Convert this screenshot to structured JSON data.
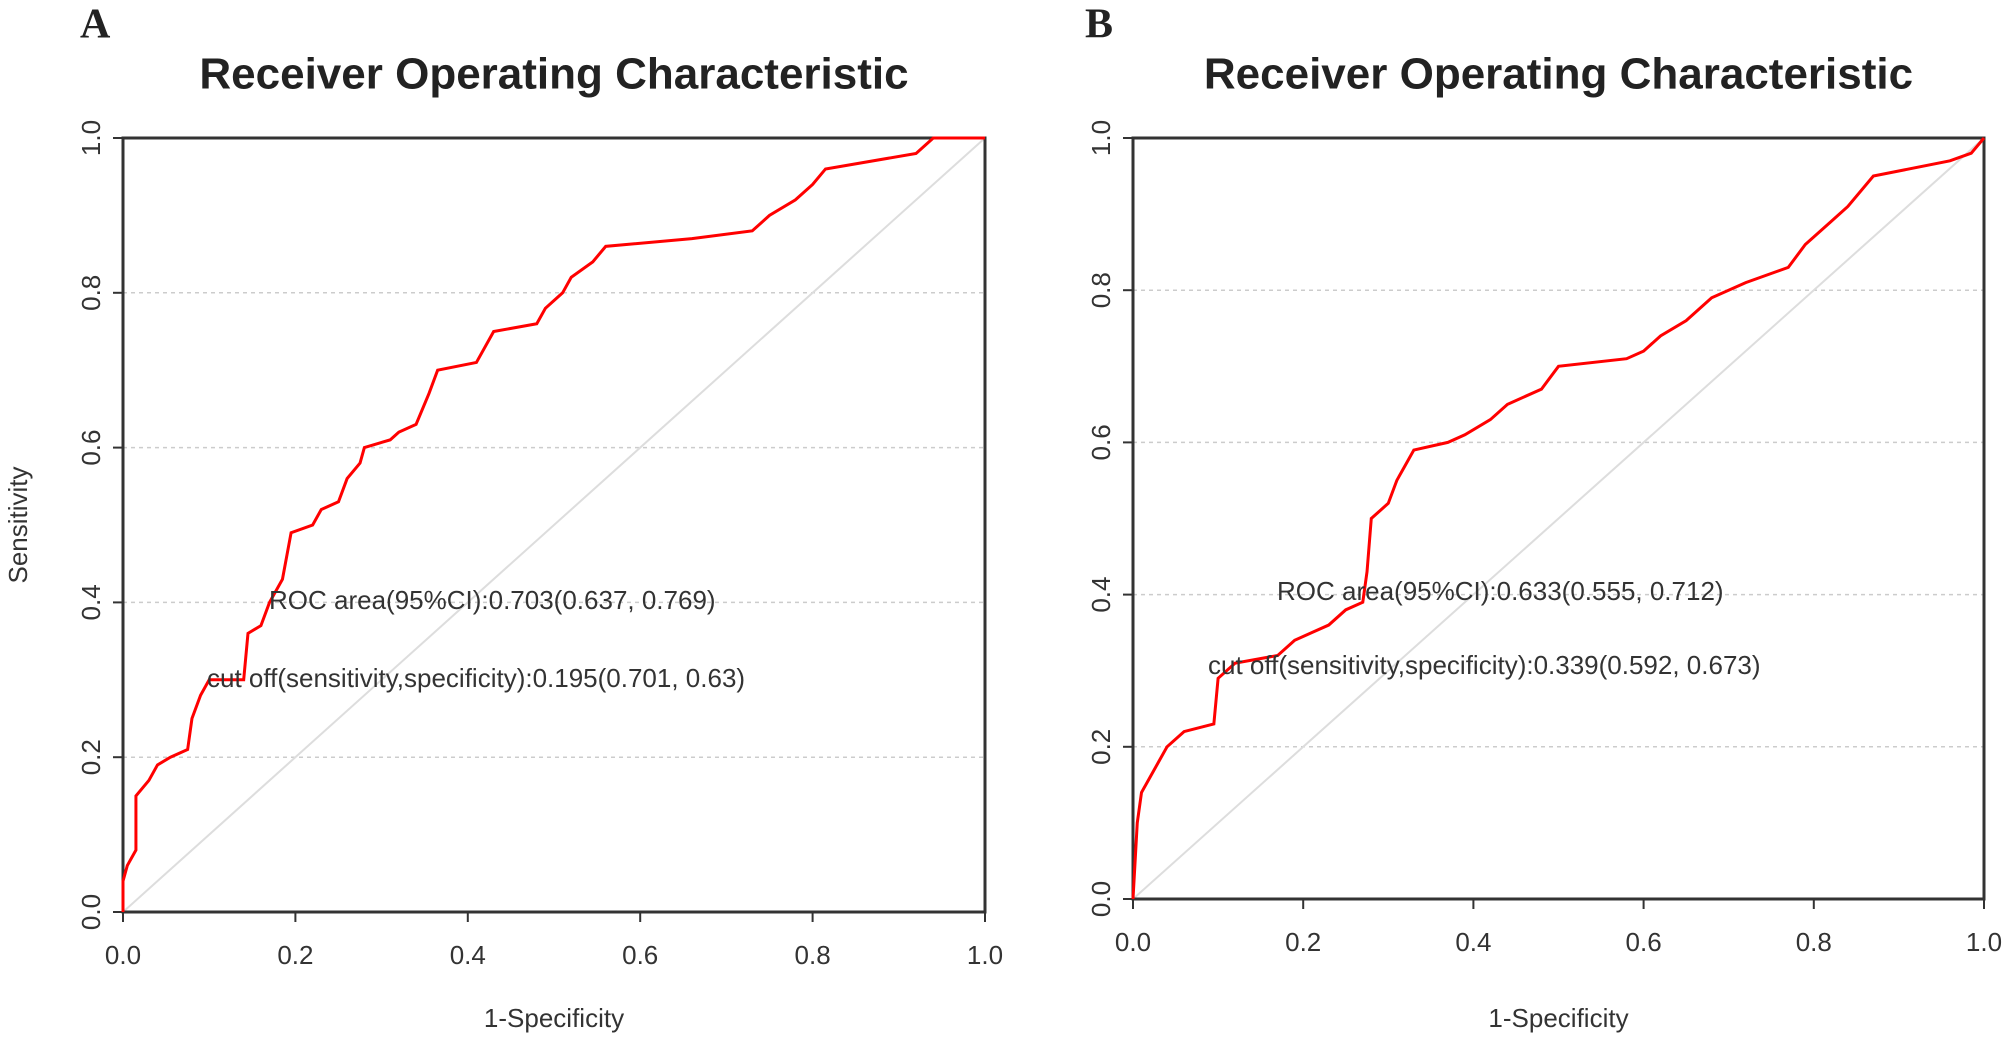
{
  "chart_data": [
    {
      "type": "line",
      "panel": "A",
      "title": "Receiver Operating Characteristic",
      "x_label": "1-Specificity",
      "y_label": "Sensitivity",
      "annotations": [
        "ROC area(95%CI):0.703(0.637, 0.769)",
        "cut off(sensitivity,specificity):0.195(0.701, 0.63)"
      ],
      "xlim": [
        0,
        1
      ],
      "ylim": [
        0,
        1
      ],
      "xticks": [
        {
          "value": 0,
          "label": "0.0"
        },
        {
          "value": 0.2,
          "label": "0.2"
        },
        {
          "value": 0.4,
          "label": "0.4"
        },
        {
          "value": 0.6,
          "label": "0.6"
        },
        {
          "value": 0.8,
          "label": "0.8"
        },
        {
          "value": 1,
          "label": "1.0"
        }
      ],
      "yticks": [
        {
          "value": 0,
          "label": "0.0"
        },
        {
          "value": 0.2,
          "label": "0.2"
        },
        {
          "value": 0.4,
          "label": "0.4"
        },
        {
          "value": 0.6,
          "label": "0.6"
        },
        {
          "value": 0.8,
          "label": "0.8"
        },
        {
          "value": 1,
          "label": "1.0"
        }
      ],
      "grid": true,
      "color": "#ff0000",
      "x": [
        0,
        0,
        0.005,
        0.015,
        0.015,
        0.03,
        0.04,
        0.055,
        0.075,
        0.08,
        0.09,
        0.1,
        0.14,
        0.145,
        0.16,
        0.17,
        0.185,
        0.195,
        0.22,
        0.23,
        0.25,
        0.26,
        0.275,
        0.28,
        0.31,
        0.32,
        0.34,
        0.355,
        0.365,
        0.41,
        0.43,
        0.48,
        0.49,
        0.51,
        0.52,
        0.545,
        0.56,
        0.66,
        0.73,
        0.75,
        0.78,
        0.8,
        0.815,
        0.92,
        0.94,
        1
      ],
      "values": [
        0,
        0.04,
        0.06,
        0.08,
        0.15,
        0.17,
        0.19,
        0.2,
        0.21,
        0.25,
        0.28,
        0.3,
        0.3,
        0.36,
        0.37,
        0.4,
        0.43,
        0.49,
        0.5,
        0.52,
        0.53,
        0.56,
        0.58,
        0.6,
        0.61,
        0.62,
        0.63,
        0.67,
        0.7,
        0.71,
        0.75,
        0.76,
        0.78,
        0.8,
        0.82,
        0.84,
        0.86,
        0.87,
        0.88,
        0.9,
        0.92,
        0.94,
        0.96,
        0.98,
        1,
        1
      ]
    },
    {
      "type": "line",
      "panel": "B",
      "title": "Receiver Operating Characteristic",
      "x_label": "1-Specificity",
      "annotations": [
        "ROC area(95%CI):0.633(0.555, 0.712)",
        "cut off(sensitivity,specificity):0.339(0.592, 0.673)"
      ],
      "xlim": [
        0,
        1
      ],
      "ylim": [
        0,
        1
      ],
      "xticks": [
        {
          "value": 0,
          "label": "0.0"
        },
        {
          "value": 0.2,
          "label": "0.2"
        },
        {
          "value": 0.4,
          "label": "0.4"
        },
        {
          "value": 0.6,
          "label": "0.6"
        },
        {
          "value": 0.8,
          "label": "0.8"
        },
        {
          "value": 1,
          "label": "1.0"
        }
      ],
      "yticks": [
        {
          "value": 0,
          "label": "0.0"
        },
        {
          "value": 0.2,
          "label": "0.2"
        },
        {
          "value": 0.4,
          "label": "0.4"
        },
        {
          "value": 0.6,
          "label": "0.6"
        },
        {
          "value": 0.8,
          "label": "0.8"
        },
        {
          "value": 1,
          "label": "1.0"
        }
      ],
      "grid": true,
      "color": "#ff0000",
      "x": [
        0,
        0.005,
        0.01,
        0.02,
        0.03,
        0.04,
        0.06,
        0.095,
        0.1,
        0.12,
        0.17,
        0.19,
        0.21,
        0.23,
        0.25,
        0.27,
        0.275,
        0.28,
        0.3,
        0.31,
        0.32,
        0.33,
        0.37,
        0.39,
        0.42,
        0.44,
        0.48,
        0.5,
        0.58,
        0.6,
        0.62,
        0.65,
        0.68,
        0.72,
        0.77,
        0.79,
        0.82,
        0.84,
        0.87,
        0.96,
        0.985,
        1
      ],
      "values": [
        0,
        0.1,
        0.14,
        0.16,
        0.18,
        0.2,
        0.22,
        0.23,
        0.29,
        0.31,
        0.32,
        0.34,
        0.35,
        0.36,
        0.38,
        0.39,
        0.43,
        0.5,
        0.52,
        0.55,
        0.57,
        0.59,
        0.6,
        0.61,
        0.63,
        0.65,
        0.67,
        0.7,
        0.71,
        0.72,
        0.74,
        0.76,
        0.79,
        0.81,
        0.83,
        0.86,
        0.89,
        0.91,
        0.95,
        0.97,
        0.98,
        1
      ]
    }
  ]
}
